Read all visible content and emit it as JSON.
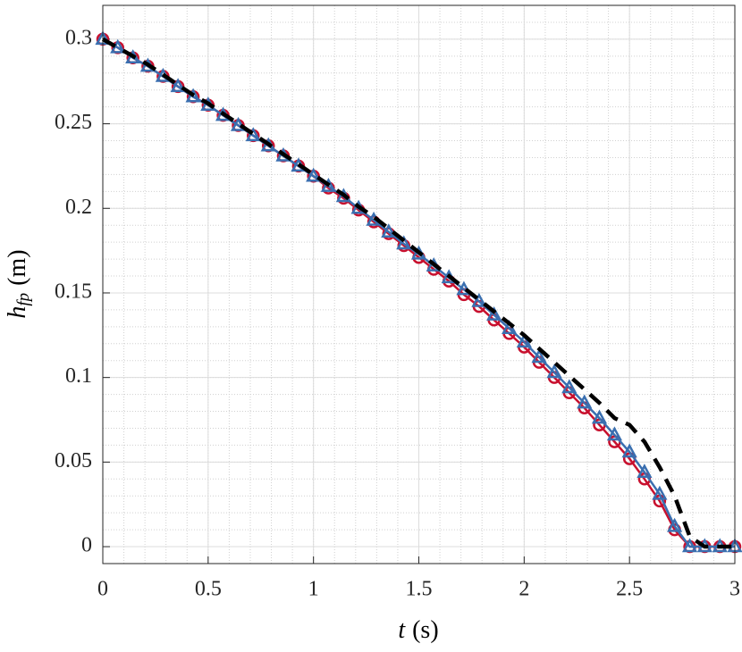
{
  "chart_data": {
    "type": "line",
    "xlabel": {
      "symbol": "t",
      "unit": "(s)"
    },
    "ylabel": {
      "symbol": "h",
      "subscript": "fp",
      "unit": "(m)"
    },
    "x": [
      0,
      0.071,
      0.143,
      0.214,
      0.286,
      0.357,
      0.429,
      0.5,
      0.571,
      0.643,
      0.714,
      0.786,
      0.857,
      0.929,
      1,
      1.071,
      1.143,
      1.214,
      1.286,
      1.357,
      1.429,
      1.5,
      1.571,
      1.643,
      1.714,
      1.786,
      1.857,
      1.929,
      2,
      2.071,
      2.143,
      2.214,
      2.286,
      2.357,
      2.429,
      2.5,
      2.571,
      2.643,
      2.714,
      2.786,
      2.857,
      2.929,
      3
    ],
    "series": [
      {
        "color": "#c8102e",
        "marker": "circle",
        "values": [
          0.3,
          0.295,
          0.289,
          0.284,
          0.278,
          0.272,
          0.266,
          0.261,
          0.255,
          0.249,
          0.243,
          0.237,
          0.231,
          0.225,
          0.219,
          0.212,
          0.206,
          0.199,
          0.192,
          0.185,
          0.178,
          0.171,
          0.164,
          0.157,
          0.149,
          0.142,
          0.134,
          0.126,
          0.118,
          0.109,
          0.1,
          0.091,
          0.082,
          0.072,
          0.062,
          0.052,
          0.04,
          0.027,
          0.01,
          0,
          0,
          0,
          0
        ]
      },
      {
        "color": "#3a6fb0",
        "marker": "triangle",
        "values": [
          0.3,
          0.295,
          0.289,
          0.284,
          0.278,
          0.272,
          0.266,
          0.261,
          0.255,
          0.249,
          0.243,
          0.237,
          0.231,
          0.225,
          0.219,
          0.213,
          0.207,
          0.2,
          0.193,
          0.186,
          0.179,
          0.173,
          0.166,
          0.159,
          0.152,
          0.145,
          0.137,
          0.129,
          0.121,
          0.112,
          0.103,
          0.094,
          0.085,
          0.076,
          0.066,
          0.056,
          0.044,
          0.031,
          0.012,
          0,
          0,
          0,
          0
        ]
      },
      {
        "color": "#000000",
        "linestyle": "dashed",
        "values": [
          0.3,
          0.295,
          0.29,
          0.285,
          0.279,
          0.273,
          0.267,
          0.262,
          0.256,
          0.25,
          0.244,
          0.238,
          0.232,
          0.226,
          0.22,
          0.214,
          0.208,
          0.201,
          0.195,
          0.188,
          0.181,
          0.174,
          0.167,
          0.16,
          0.153,
          0.146,
          0.139,
          0.132,
          0.125,
          0.117,
          0.109,
          0.101,
          0.093,
          0.085,
          0.076,
          0.072,
          0.062,
          0.047,
          0.03,
          0.006,
          0,
          0,
          0
        ]
      }
    ],
    "xlim": [
      0,
      3
    ],
    "ylim": [
      -0.01,
      0.32
    ],
    "xticks": [
      0,
      0.5,
      1,
      1.5,
      2,
      2.5,
      3
    ],
    "yticks": [
      0,
      0.05,
      0.1,
      0.15,
      0.2,
      0.25,
      0.3
    ],
    "grid": true,
    "minor_grid": true
  }
}
